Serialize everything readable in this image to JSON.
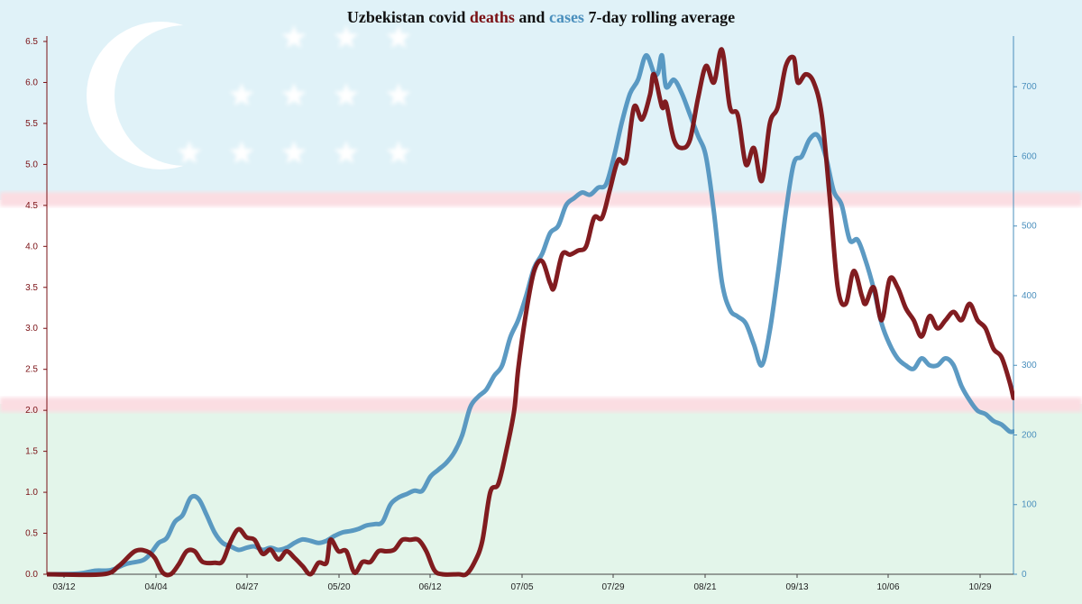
{
  "colors": {
    "deaths": "#7a1014",
    "cases": "#4a8fbd",
    "flag_blue": "#e0f2f8",
    "flag_white": "#ffffff",
    "flag_red": "#fbdde2",
    "flag_green": "#e3f5ea",
    "title": "#111111"
  },
  "chart_data": {
    "type": "line",
    "title": {
      "prefix": "Uzbekistan covid ",
      "deaths_word": "deaths",
      "middle": " and ",
      "cases_word": "cases",
      "suffix": " 7-day rolling average"
    },
    "background": "Uzbekistan flag (blue, white, green bands with red fimbriations, crescent and 12 stars)",
    "x_tick_labels": [
      "03/12",
      "04/04",
      "04/27",
      "05/20",
      "06/12",
      "07/05",
      "07/29",
      "08/21",
      "09/13",
      "10/06",
      "10/29"
    ],
    "y_left": {
      "range": [
        0,
        6.5
      ],
      "ticks": [
        "0.0",
        "0.5",
        "1.0",
        "1.5",
        "2.0",
        "2.5",
        "3.0",
        "3.5",
        "4.0",
        "4.5",
        "5.0",
        "5.5",
        "6.0",
        "6.5"
      ]
    },
    "y_right": {
      "range": [
        0,
        765
      ],
      "ticks": [
        "0",
        "100",
        "200",
        "300",
        "400",
        "500",
        "600",
        "700"
      ]
    },
    "grid": false,
    "series": [
      {
        "key": "deaths",
        "name": "deaths",
        "axis": "left",
        "points": [
          [
            0,
            0
          ],
          [
            14,
            0
          ],
          [
            18,
            0.1
          ],
          [
            22,
            0.28
          ],
          [
            25,
            0.28
          ],
          [
            27,
            0.2
          ],
          [
            29,
            0.02
          ],
          [
            31,
            0
          ],
          [
            33,
            0.12
          ],
          [
            35,
            0.28
          ],
          [
            37,
            0.28
          ],
          [
            39,
            0.15
          ],
          [
            42,
            0.14
          ],
          [
            44,
            0.16
          ],
          [
            46,
            0.4
          ],
          [
            48,
            0.55
          ],
          [
            50,
            0.45
          ],
          [
            52,
            0.42
          ],
          [
            54,
            0.25
          ],
          [
            56,
            0.3
          ],
          [
            58,
            0.18
          ],
          [
            60,
            0.28
          ],
          [
            62,
            0.2
          ],
          [
            64,
            0.1
          ],
          [
            66,
            0.0
          ],
          [
            68,
            0.14
          ],
          [
            70,
            0.14
          ],
          [
            71,
            0.42
          ],
          [
            73,
            0.28
          ],
          [
            75,
            0.28
          ],
          [
            77,
            0.02
          ],
          [
            79,
            0.15
          ],
          [
            81,
            0.15
          ],
          [
            83,
            0.28
          ],
          [
            85,
            0.28
          ],
          [
            87,
            0.3
          ],
          [
            89,
            0.42
          ],
          [
            91,
            0.42
          ],
          [
            93,
            0.42
          ],
          [
            95,
            0.28
          ],
          [
            97,
            0.05
          ],
          [
            99,
            0
          ],
          [
            103,
            0
          ],
          [
            105,
            0.0
          ],
          [
            107,
            0.14
          ],
          [
            109,
            0.4
          ],
          [
            111,
            1.0
          ],
          [
            113,
            1.1
          ],
          [
            115,
            1.5
          ],
          [
            117,
            2.0
          ],
          [
            118,
            2.5
          ],
          [
            120,
            3.2
          ],
          [
            122,
            3.7
          ],
          [
            124,
            3.82
          ],
          [
            126,
            3.55
          ],
          [
            127,
            3.5
          ],
          [
            129,
            3.9
          ],
          [
            131,
            3.9
          ],
          [
            133,
            3.95
          ],
          [
            135,
            4.0
          ],
          [
            137,
            4.35
          ],
          [
            139,
            4.35
          ],
          [
            141,
            4.7
          ],
          [
            143,
            5.05
          ],
          [
            145,
            5.05
          ],
          [
            147,
            5.7
          ],
          [
            149,
            5.55
          ],
          [
            151,
            5.85
          ],
          [
            152,
            6.1
          ],
          [
            154,
            5.7
          ],
          [
            155,
            5.75
          ],
          [
            157,
            5.3
          ],
          [
            159,
            5.2
          ],
          [
            161,
            5.3
          ],
          [
            163,
            5.8
          ],
          [
            165,
            6.2
          ],
          [
            167,
            6.0
          ],
          [
            169,
            6.4
          ],
          [
            171,
            5.7
          ],
          [
            173,
            5.6
          ],
          [
            175,
            5.0
          ],
          [
            177,
            5.2
          ],
          [
            179,
            4.8
          ],
          [
            181,
            5.5
          ],
          [
            183,
            5.7
          ],
          [
            185,
            6.2
          ],
          [
            187,
            6.3
          ],
          [
            188,
            6.0
          ],
          [
            190,
            6.1
          ],
          [
            192,
            6.0
          ],
          [
            194,
            5.6
          ],
          [
            196,
            4.6
          ],
          [
            198,
            3.5
          ],
          [
            200,
            3.3
          ],
          [
            202,
            3.7
          ],
          [
            204,
            3.4
          ],
          [
            205,
            3.3
          ],
          [
            207,
            3.5
          ],
          [
            209,
            3.1
          ],
          [
            211,
            3.6
          ],
          [
            213,
            3.5
          ],
          [
            215,
            3.25
          ],
          [
            217,
            3.1
          ],
          [
            219,
            2.9
          ],
          [
            221,
            3.15
          ],
          [
            223,
            3.0
          ],
          [
            225,
            3.1
          ],
          [
            227,
            3.2
          ],
          [
            229,
            3.1
          ],
          [
            231,
            3.3
          ],
          [
            233,
            3.1
          ],
          [
            235,
            3.0
          ],
          [
            237,
            2.75
          ],
          [
            239,
            2.65
          ],
          [
            241,
            2.35
          ],
          [
            242,
            2.15
          ]
        ]
      },
      {
        "key": "cases",
        "name": "cases",
        "axis": "right",
        "points": [
          [
            0,
            0
          ],
          [
            8,
            1
          ],
          [
            12,
            5
          ],
          [
            16,
            6
          ],
          [
            20,
            15
          ],
          [
            24,
            20
          ],
          [
            26,
            30
          ],
          [
            28,
            45
          ],
          [
            30,
            52
          ],
          [
            32,
            75
          ],
          [
            34,
            85
          ],
          [
            36,
            110
          ],
          [
            38,
            108
          ],
          [
            40,
            85
          ],
          [
            42,
            60
          ],
          [
            44,
            45
          ],
          [
            46,
            40
          ],
          [
            48,
            35
          ],
          [
            50,
            38
          ],
          [
            52,
            40
          ],
          [
            54,
            35
          ],
          [
            56,
            38
          ],
          [
            58,
            35
          ],
          [
            60,
            38
          ],
          [
            62,
            45
          ],
          [
            64,
            50
          ],
          [
            66,
            48
          ],
          [
            68,
            45
          ],
          [
            70,
            48
          ],
          [
            72,
            55
          ],
          [
            74,
            60
          ],
          [
            76,
            62
          ],
          [
            78,
            65
          ],
          [
            80,
            70
          ],
          [
            82,
            72
          ],
          [
            84,
            75
          ],
          [
            86,
            100
          ],
          [
            88,
            110
          ],
          [
            90,
            115
          ],
          [
            92,
            120
          ],
          [
            94,
            120
          ],
          [
            96,
            140
          ],
          [
            98,
            150
          ],
          [
            100,
            160
          ],
          [
            102,
            175
          ],
          [
            104,
            200
          ],
          [
            106,
            240
          ],
          [
            108,
            255
          ],
          [
            110,
            265
          ],
          [
            112,
            285
          ],
          [
            114,
            300
          ],
          [
            116,
            340
          ],
          [
            118,
            365
          ],
          [
            120,
            400
          ],
          [
            122,
            440
          ],
          [
            124,
            460
          ],
          [
            126,
            490
          ],
          [
            128,
            500
          ],
          [
            130,
            530
          ],
          [
            132,
            540
          ],
          [
            134,
            548
          ],
          [
            136,
            545
          ],
          [
            138,
            555
          ],
          [
            140,
            560
          ],
          [
            142,
            600
          ],
          [
            144,
            650
          ],
          [
            146,
            690
          ],
          [
            148,
            710
          ],
          [
            150,
            745
          ],
          [
            152,
            720
          ],
          [
            153,
            720
          ],
          [
            154,
            745
          ],
          [
            155,
            700
          ],
          [
            157,
            710
          ],
          [
            159,
            690
          ],
          [
            161,
            660
          ],
          [
            163,
            630
          ],
          [
            165,
            600
          ],
          [
            167,
            520
          ],
          [
            169,
            420
          ],
          [
            171,
            380
          ],
          [
            173,
            370
          ],
          [
            175,
            360
          ],
          [
            177,
            330
          ],
          [
            179,
            300
          ],
          [
            181,
            350
          ],
          [
            183,
            430
          ],
          [
            185,
            520
          ],
          [
            187,
            590
          ],
          [
            189,
            600
          ],
          [
            191,
            625
          ],
          [
            193,
            630
          ],
          [
            195,
            600
          ],
          [
            197,
            550
          ],
          [
            199,
            530
          ],
          [
            201,
            480
          ],
          [
            203,
            480
          ],
          [
            205,
            450
          ],
          [
            207,
            410
          ],
          [
            209,
            360
          ],
          [
            211,
            330
          ],
          [
            213,
            310
          ],
          [
            215,
            300
          ],
          [
            217,
            295
          ],
          [
            219,
            310
          ],
          [
            221,
            300
          ],
          [
            223,
            300
          ],
          [
            225,
            310
          ],
          [
            227,
            300
          ],
          [
            229,
            270
          ],
          [
            231,
            250
          ],
          [
            233,
            235
          ],
          [
            235,
            230
          ],
          [
            237,
            220
          ],
          [
            239,
            215
          ],
          [
            241,
            205
          ],
          [
            242,
            205
          ]
        ]
      }
    ]
  }
}
